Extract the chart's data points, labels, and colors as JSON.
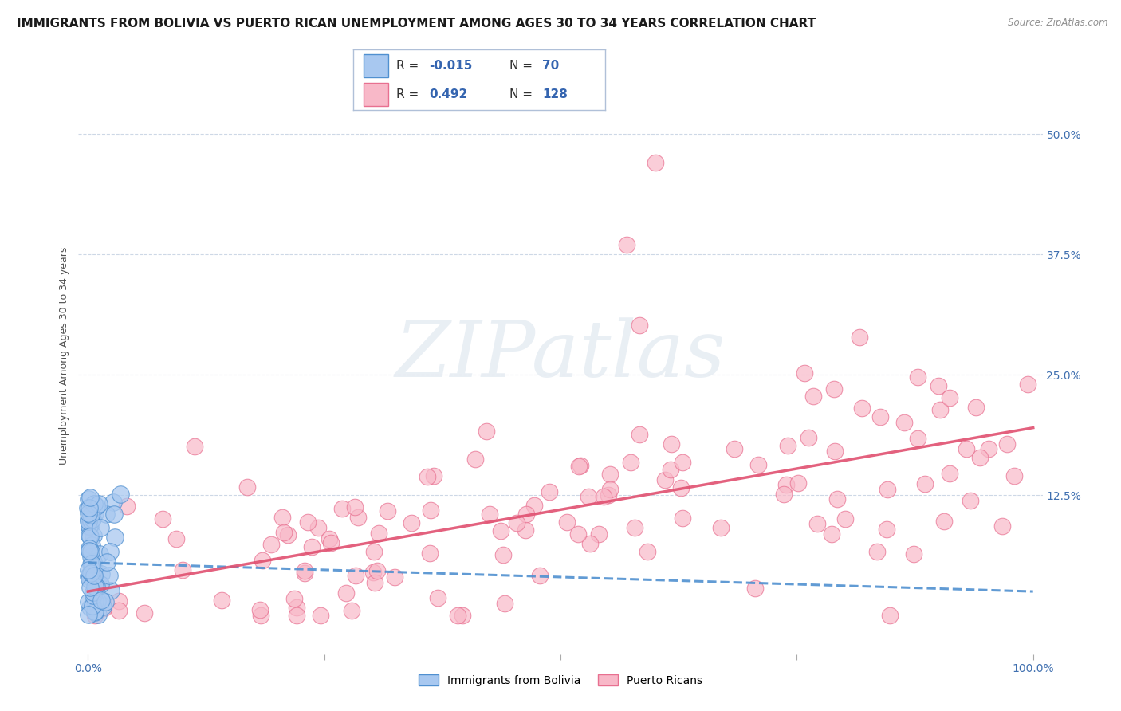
{
  "title": "IMMIGRANTS FROM BOLIVIA VS PUERTO RICAN UNEMPLOYMENT AMONG AGES 30 TO 34 YEARS CORRELATION CHART",
  "source": "Source: ZipAtlas.com",
  "ylabel": "Unemployment Among Ages 30 to 34 years",
  "xlim": [
    -0.01,
    1.01
  ],
  "ylim": [
    -0.04,
    0.58
  ],
  "ytick_positions": [
    0.0,
    0.125,
    0.25,
    0.375,
    0.5
  ],
  "ytick_labels": [
    "",
    "12.5%",
    "25.0%",
    "37.5%",
    "50.0%"
  ],
  "title_fontsize": 11,
  "tick_fontsize": 10,
  "watermark_text": "ZIPatlas",
  "legend_R1": "-0.015",
  "legend_N1": "70",
  "legend_R2": "0.492",
  "legend_N2": "128",
  "bolivia_face_color": "#a8c8f0",
  "bolivia_edge_color": "#5090d0",
  "puertorico_face_color": "#f8b8c8",
  "puertorico_edge_color": "#e87090",
  "trend_bolivia_color": "#5090d0",
  "trend_puertorico_color": "#e05070",
  "background_color": "#ffffff",
  "grid_color": "#c8d4e4",
  "tick_color": "#4070b0",
  "legend_border_color": "#b0c0d8",
  "bolivia_trend_start_y": 0.055,
  "bolivia_trend_end_y": 0.025,
  "pr_trend_start_y": 0.025,
  "pr_trend_end_y": 0.195
}
